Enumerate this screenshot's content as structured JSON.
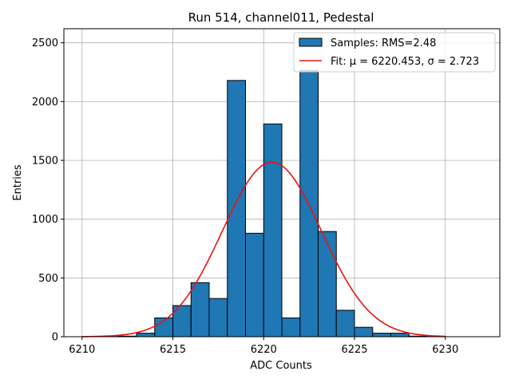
{
  "chart_data": {
    "type": "bar",
    "title": "Run 514, channel011, Pedestal",
    "xlabel": "ADC Counts",
    "ylabel": "Entries",
    "xlim": [
      6209,
      6233
    ],
    "ylim": [
      0,
      2620
    ],
    "xticks": [
      6210,
      6215,
      6220,
      6225,
      6230
    ],
    "yticks": [
      0,
      500,
      1000,
      1500,
      2000,
      2500
    ],
    "grid": true,
    "legend_position": "top-right",
    "bin_width": 1,
    "bins": [
      {
        "x0": 6211,
        "value": 2
      },
      {
        "x0": 6212,
        "value": 5
      },
      {
        "x0": 6213,
        "value": 30
      },
      {
        "x0": 6214,
        "value": 160
      },
      {
        "x0": 6215,
        "value": 265
      },
      {
        "x0": 6216,
        "value": 460
      },
      {
        "x0": 6217,
        "value": 325
      },
      {
        "x0": 6218,
        "value": 2180
      },
      {
        "x0": 6219,
        "value": 880
      },
      {
        "x0": 6220,
        "value": 1810
      },
      {
        "x0": 6221,
        "value": 160
      },
      {
        "x0": 6222,
        "value": 2265
      },
      {
        "x0": 6223,
        "value": 895
      },
      {
        "x0": 6224,
        "value": 225
      },
      {
        "x0": 6225,
        "value": 80
      },
      {
        "x0": 6226,
        "value": 30
      },
      {
        "x0": 6227,
        "value": 30
      },
      {
        "x0": 6228,
        "value": 5
      },
      {
        "x0": 6229,
        "value": 2
      }
    ],
    "fit": {
      "mu": 6220.453,
      "sigma": 2.723,
      "amplitude": 1485,
      "x_range": [
        6210,
        6230
      ]
    },
    "series": [
      {
        "name": "Samples: RMS=2.48",
        "color": "#1f77b4",
        "kind": "histogram"
      },
      {
        "name": "Fit: μ = 6220.453, σ = 2.723",
        "color": "#e8140f",
        "kind": "line"
      }
    ]
  },
  "colors": {
    "bar_fill": "#1f77b4",
    "bar_edge": "#000000",
    "fit_line": "#e8140f",
    "grid": "#b0b0b0"
  }
}
